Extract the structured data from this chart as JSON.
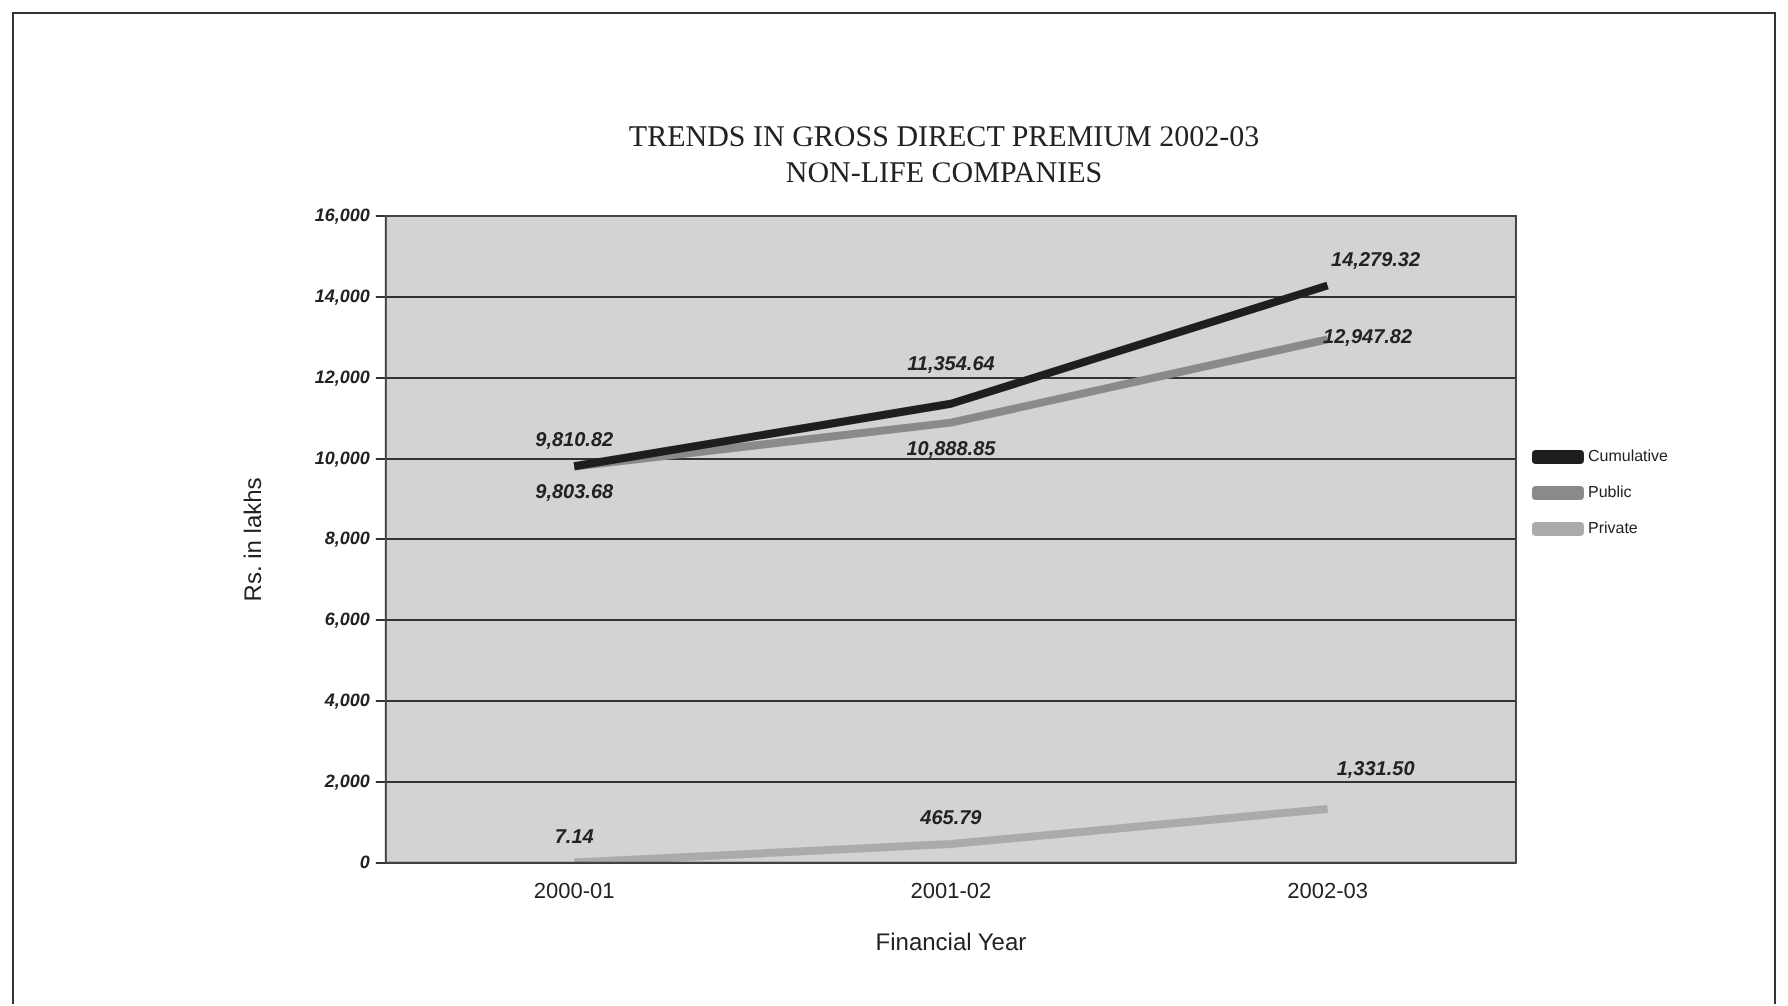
{
  "chart_data": {
    "type": "line",
    "title": "TRENDS IN GROSS DIRECT PREMIUM 2002-03\nNON-LIFE COMPANIES",
    "xlabel": "Financial Year",
    "ylabel": "Rs. in lakhs",
    "categories": [
      "2000-01",
      "2001-02",
      "2002-03"
    ],
    "series": [
      {
        "name": "Cumulative",
        "color": "#1e1e1e",
        "values": [
          9810.82,
          11354.64,
          14279.32
        ],
        "value_labels": [
          "9,810.82",
          "11,354.64",
          "14,279.32"
        ]
      },
      {
        "name": "Public",
        "color": "#8a8a8a",
        "values": [
          9803.68,
          10888.85,
          12947.82
        ],
        "value_labels": [
          "9,803.68",
          "10,888.85",
          "12,947.82"
        ]
      },
      {
        "name": "Private",
        "color": "#ababab",
        "values": [
          7.14,
          465.79,
          1331.5
        ],
        "value_labels": [
          "7.14",
          "465.79",
          "1,331.50"
        ]
      }
    ],
    "ylim": [
      0,
      16000
    ],
    "yticks": [
      0,
      {
        "value": 2000,
        "label": "2,000"
      },
      {
        "value": 4000,
        "label": "4,000"
      },
      {
        "value": 6000,
        "label": "6,000"
      },
      {
        "value": 8000,
        "label": "8,000"
      },
      {
        "value": 10000,
        "label": "10,000"
      },
      {
        "value": 12000,
        "label": "12,000"
      },
      {
        "value": 14000,
        "label": "14,000"
      },
      {
        "value": 16000,
        "label": "16,000"
      }
    ],
    "grid": "y",
    "legend": "right",
    "marker": "none",
    "line_style": "solid"
  }
}
